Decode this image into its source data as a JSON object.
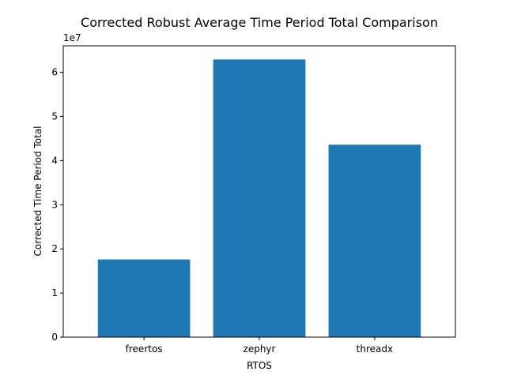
{
  "chart_data": {
    "type": "bar",
    "title": "Corrected Robust Average Time Period Total Comparison",
    "xlabel": "RTOS",
    "ylabel": "Corrected Time Period Total",
    "y_offset_label": "1e7",
    "y_scale": 10000000,
    "categories": [
      "freertos",
      "zephyr",
      "threadx"
    ],
    "values": [
      17600000,
      62900000,
      43600000
    ],
    "ylim": [
      0,
      66000000
    ],
    "yticks": [
      0,
      1,
      2,
      3,
      4,
      5,
      6
    ],
    "bar_color": "#1f77b4",
    "grid": false
  }
}
